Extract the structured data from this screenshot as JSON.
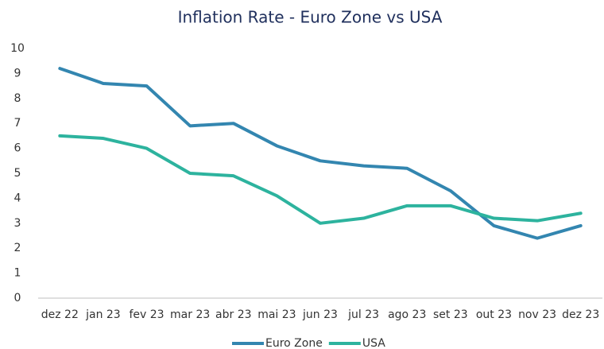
{
  "chart_data": {
    "type": "line",
    "title": "Inflation Rate - Euro Zone vs USA",
    "categories": [
      "dez 22",
      "jan 23",
      "fev 23",
      "mar 23",
      "abr 23",
      "mai 23",
      "jun 23",
      "jul 23",
      "ago 23",
      "set 23",
      "out 23",
      "nov 23",
      "dez 23"
    ],
    "series": [
      {
        "name": "Euro Zone",
        "color": "#3386b0",
        "values": [
          9.2,
          8.6,
          8.5,
          6.9,
          7.0,
          6.1,
          5.5,
          5.3,
          5.2,
          4.3,
          2.9,
          2.4,
          2.9
        ]
      },
      {
        "name": "USA",
        "color": "#2db39e",
        "values": [
          6.5,
          6.4,
          6.0,
          5.0,
          4.9,
          4.1,
          3.0,
          3.2,
          3.7,
          3.7,
          3.2,
          3.1,
          3.4
        ]
      }
    ],
    "ylim": [
      0,
      10
    ],
    "yticks": [
      0,
      1,
      2,
      3,
      4,
      5,
      6,
      7,
      8,
      9,
      10
    ],
    "grid": false,
    "legend": "bottom"
  }
}
